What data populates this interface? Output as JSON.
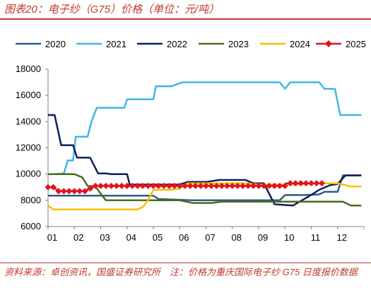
{
  "title": "图表20：电子纱（G75）价格（单位：元/吨）",
  "source": "资料来源：卓创资讯，国盛证券研究所　注：价格为重庆国际电子纱 G75 日度报价数据",
  "chart_data": {
    "type": "line",
    "title": "图表20：电子纱（G75）价格（单位：元/吨）",
    "xlabel": "",
    "ylabel": "",
    "x_ticks": [
      "01",
      "02",
      "03",
      "04",
      "05",
      "06",
      "07",
      "08",
      "09",
      "10",
      "11",
      "12"
    ],
    "xlim": [
      1,
      13
    ],
    "ylim": [
      6000,
      18000
    ],
    "y_ticks": [
      6000,
      8000,
      10000,
      12000,
      14000,
      16000,
      18000
    ],
    "grid": false,
    "legend": "top",
    "series": [
      {
        "name": "2020",
        "color": "#2e5c8a",
        "points": [
          [
            1,
            8350
          ],
          [
            3.0,
            8350
          ],
          [
            3.5,
            8350
          ],
          [
            5.0,
            8350
          ],
          [
            5.2,
            8100
          ],
          [
            6.5,
            8000
          ],
          [
            8.0,
            8000
          ],
          [
            9.0,
            8000
          ],
          [
            9.8,
            8000
          ],
          [
            10.0,
            8400
          ],
          [
            10.8,
            8400
          ],
          [
            11.3,
            8450
          ],
          [
            11.5,
            8650
          ],
          [
            12.0,
            8650
          ],
          [
            12.2,
            9900
          ],
          [
            12.9,
            9900
          ]
        ]
      },
      {
        "name": "2021",
        "color": "#41b6e6",
        "points": [
          [
            1,
            10000
          ],
          [
            1.3,
            10000
          ],
          [
            1.6,
            10050
          ],
          [
            1.75,
            11050
          ],
          [
            1.95,
            11050
          ],
          [
            2.05,
            12850
          ],
          [
            2.5,
            12850
          ],
          [
            2.65,
            14000
          ],
          [
            2.85,
            15050
          ],
          [
            3.9,
            15050
          ],
          [
            4.0,
            15700
          ],
          [
            5.0,
            15700
          ],
          [
            5.1,
            16700
          ],
          [
            5.7,
            16700
          ],
          [
            6.1,
            17000
          ],
          [
            9.8,
            17000
          ],
          [
            10.0,
            16500
          ],
          [
            10.2,
            17000
          ],
          [
            11.3,
            17000
          ],
          [
            11.5,
            16500
          ],
          [
            11.9,
            16500
          ],
          [
            12.1,
            14500
          ],
          [
            12.9,
            14500
          ]
        ]
      },
      {
        "name": "2022",
        "color": "#0d1f5c",
        "points": [
          [
            1,
            14500
          ],
          [
            1.25,
            14500
          ],
          [
            1.5,
            12200
          ],
          [
            1.95,
            12200
          ],
          [
            2.1,
            11250
          ],
          [
            2.6,
            11250
          ],
          [
            2.9,
            10050
          ],
          [
            3.2,
            10050
          ],
          [
            3.4,
            10000
          ],
          [
            4.0,
            10000
          ],
          [
            4.1,
            9200
          ],
          [
            5.2,
            9200
          ],
          [
            6.0,
            9200
          ],
          [
            6.3,
            9400
          ],
          [
            7.0,
            9400
          ],
          [
            7.5,
            9550
          ],
          [
            8.5,
            9550
          ],
          [
            8.8,
            9300
          ],
          [
            9.2,
            9300
          ],
          [
            9.4,
            8500
          ],
          [
            9.6,
            7700
          ],
          [
            10.3,
            7600
          ],
          [
            10.6,
            7950
          ],
          [
            10.9,
            8300
          ],
          [
            11.3,
            8800
          ],
          [
            11.7,
            9150
          ],
          [
            12.0,
            9250
          ],
          [
            12.3,
            9900
          ],
          [
            12.9,
            9900
          ]
        ]
      },
      {
        "name": "2023",
        "color": "#4a6b1f",
        "points": [
          [
            1,
            10000
          ],
          [
            2.0,
            10000
          ],
          [
            2.3,
            9750
          ],
          [
            2.5,
            9100
          ],
          [
            2.8,
            9050
          ],
          [
            3.0,
            8500
          ],
          [
            3.2,
            8000
          ],
          [
            5.3,
            8000
          ],
          [
            6.0,
            8000
          ],
          [
            6.5,
            7800
          ],
          [
            7.2,
            7800
          ],
          [
            7.6,
            7900
          ],
          [
            9.0,
            7900
          ],
          [
            11.0,
            7900
          ],
          [
            12.2,
            7900
          ],
          [
            12.5,
            7600
          ],
          [
            12.9,
            7600
          ]
        ]
      },
      {
        "name": "2024",
        "color": "#f5c000",
        "points": [
          [
            1,
            7600
          ],
          [
            1.2,
            7300
          ],
          [
            4.4,
            7300
          ],
          [
            4.6,
            7500
          ],
          [
            4.8,
            8000
          ],
          [
            5.0,
            8800
          ],
          [
            5.6,
            8800
          ],
          [
            6.0,
            8900
          ],
          [
            6.3,
            9300
          ],
          [
            7.5,
            9300
          ],
          [
            8.5,
            9300
          ],
          [
            9.0,
            9200
          ],
          [
            10.5,
            9200
          ],
          [
            11.0,
            9300
          ],
          [
            12.0,
            9300
          ],
          [
            12.5,
            9050
          ],
          [
            12.9,
            9050
          ]
        ]
      },
      {
        "name": "2025",
        "color": "#e0141e",
        "marker": "diamond",
        "points": [
          [
            1,
            9000
          ],
          [
            1.2,
            9000
          ],
          [
            1.4,
            8700
          ],
          [
            2.4,
            8700
          ],
          [
            2.8,
            9100
          ],
          [
            10.0,
            9100
          ],
          [
            10.05,
            9300
          ],
          [
            11.5,
            9300
          ]
        ]
      }
    ]
  }
}
